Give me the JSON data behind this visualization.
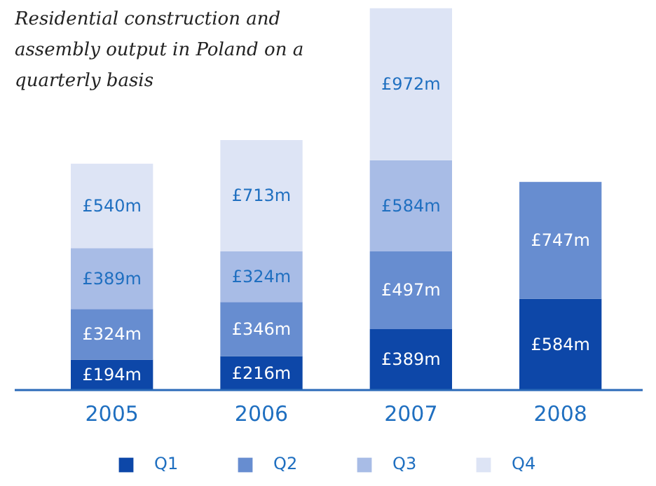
{
  "chart_data": {
    "type": "bar",
    "stacked": true,
    "title": "Residential construction and assembly output in Poland on a quarterly basis",
    "categories": [
      "2005",
      "2006",
      "2007",
      "2008"
    ],
    "series": [
      {
        "name": "Q1",
        "color": "#0d47a8",
        "values": [
          194,
          216,
          389,
          584
        ],
        "value_labels": [
          "£194m",
          "£216m",
          "£389m",
          "£584m"
        ]
      },
      {
        "name": "Q2",
        "color": "#678dd0",
        "values": [
          324,
          346,
          497,
          747
        ],
        "value_labels": [
          "£324m",
          "£346m",
          "£497m",
          "£747m"
        ]
      },
      {
        "name": "Q3",
        "color": "#a8bce6",
        "values": [
          389,
          324,
          584,
          null
        ],
        "value_labels": [
          "£389m",
          "£324m",
          "£584m",
          null
        ]
      },
      {
        "name": "Q4",
        "color": "#dde4f5",
        "values": [
          540,
          713,
          972,
          null
        ],
        "value_labels": [
          "£540m",
          "£713m",
          "£972m",
          null
        ]
      }
    ],
    "legend": "bottom"
  }
}
